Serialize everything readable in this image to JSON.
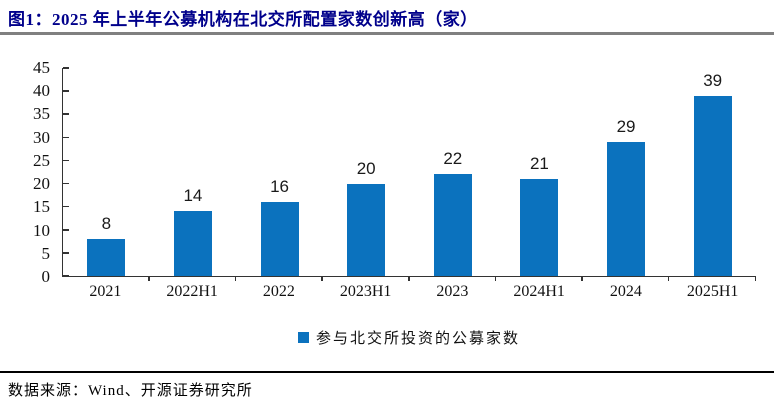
{
  "header": {
    "title": "图1：2025 年上半年公募机构在北交所配置家数创新高（家）"
  },
  "chart_data": {
    "type": "bar",
    "title": "",
    "categories": [
      "2021",
      "2022H1",
      "2022",
      "2023H1",
      "2023",
      "2024H1",
      "2024",
      "2025H1"
    ],
    "values": [
      8,
      14,
      16,
      20,
      22,
      21,
      29,
      39
    ],
    "series_name": "参与北交所投资的公募家数",
    "xlabel": "",
    "ylabel": "",
    "ylim": [
      0,
      45
    ],
    "yticks": [
      0,
      5,
      10,
      15,
      20,
      25,
      30,
      35,
      40,
      45
    ],
    "grid": false,
    "legend_position": "bottom",
    "bar_color": "#0B72BE",
    "data_labels_shown": true
  },
  "legend": {
    "label": "参与北交所投资的公募家数"
  },
  "footer": {
    "source_label": "数据来源：Wind、开源证券研究所"
  },
  "colors": {
    "title": "#00008B",
    "bar": "#0B72BE",
    "title_rule": "#808080",
    "footer_rule": "#000000",
    "axis": "#333333"
  }
}
